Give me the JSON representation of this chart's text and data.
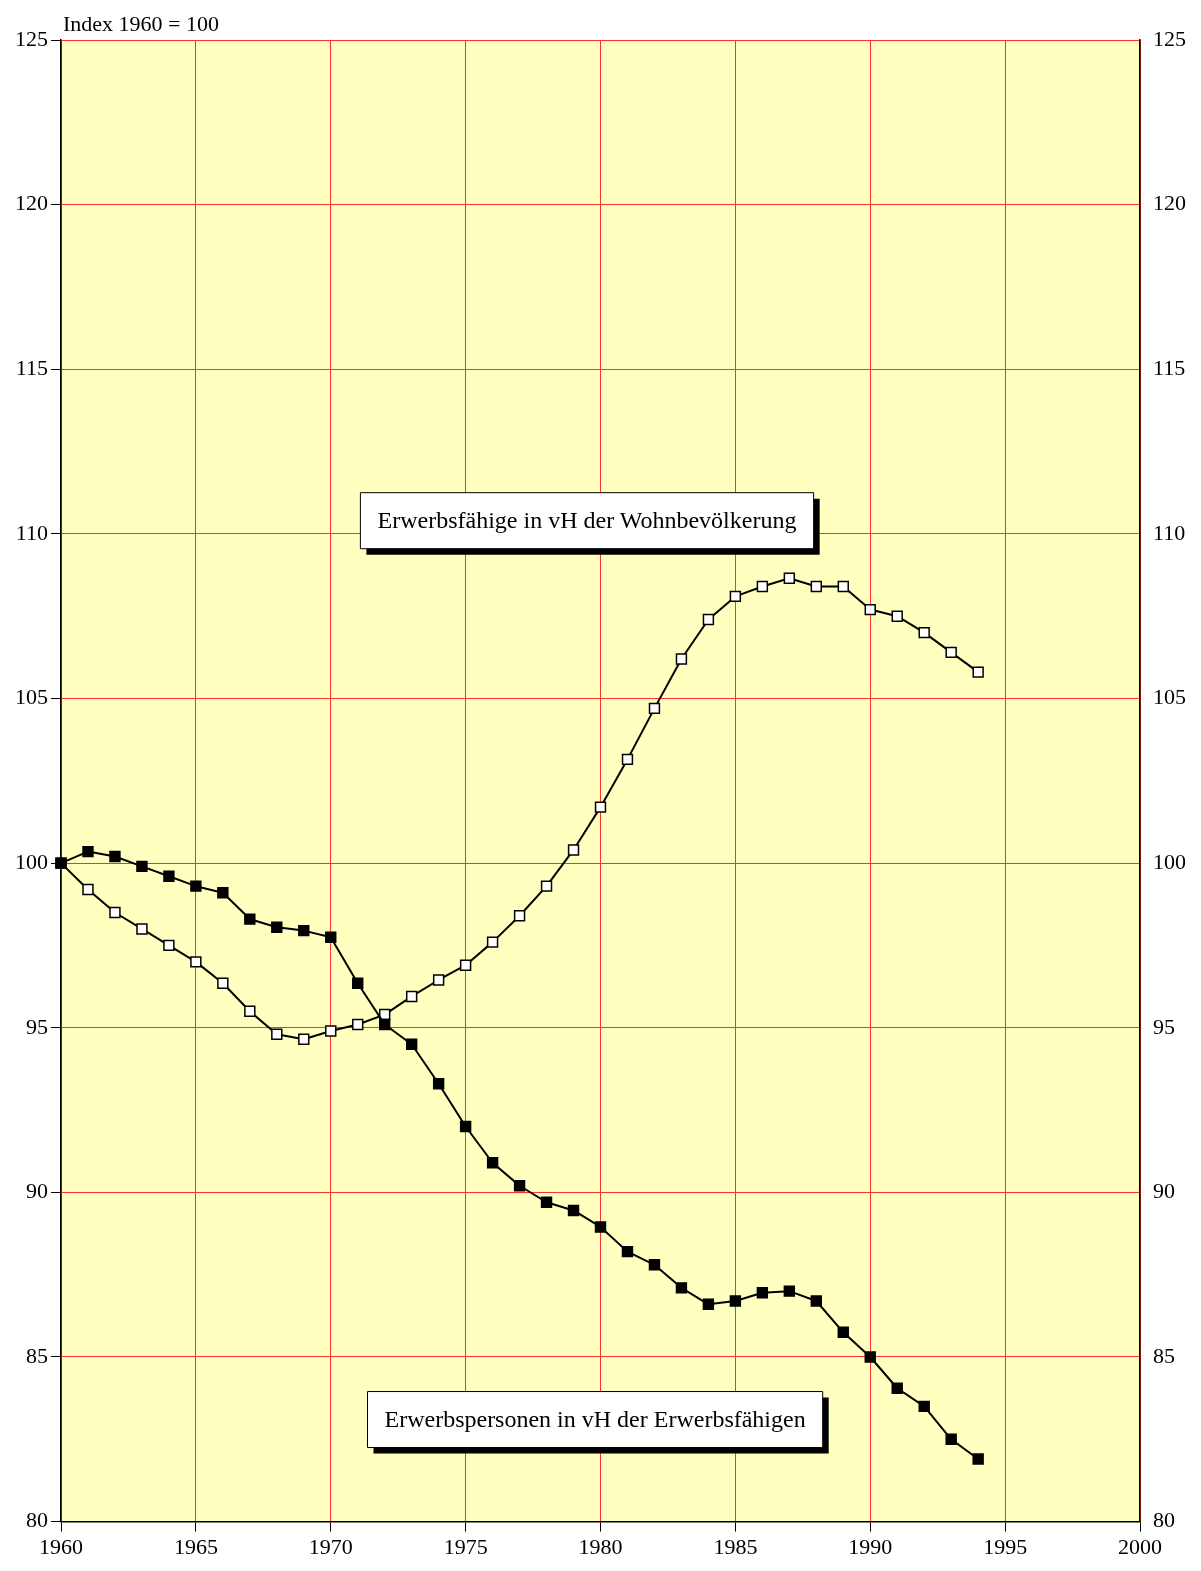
{
  "chart_data": {
    "type": "line",
    "ylabel": "Index 1960 = 100",
    "x": [
      1960,
      1961,
      1962,
      1963,
      1964,
      1965,
      1966,
      1967,
      1968,
      1969,
      1970,
      1971,
      1972,
      1973,
      1974,
      1975,
      1976,
      1977,
      1978,
      1979,
      1980,
      1981,
      1982,
      1983,
      1984,
      1985,
      1986,
      1987,
      1988,
      1989,
      1990,
      1991,
      1992,
      1993,
      1994
    ],
    "series": [
      {
        "name": "Erwerbsfähige in vH der Wohnbevölkerung",
        "color": "#ffffff",
        "values": [
          100,
          99.2,
          98.5,
          98.0,
          97.5,
          97.0,
          96.35,
          95.5,
          94.8,
          94.65,
          94.9,
          95.1,
          95.4,
          95.95,
          96.45,
          96.9,
          97.6,
          98.4,
          99.3,
          100.4,
          101.7,
          103.15,
          104.7,
          106.2,
          107.4,
          108.1,
          108.4,
          108.65,
          108.4,
          108.4,
          107.7,
          107.5,
          107.0,
          106.4,
          105.8
        ]
      },
      {
        "name": "Erwerbspersonen in vH der Erwerbsfähigen",
        "color": "#000000",
        "values": [
          100,
          100.35,
          100.2,
          99.9,
          99.6,
          99.3,
          99.1,
          98.3,
          98.05,
          97.95,
          97.75,
          96.35,
          95.1,
          94.5,
          93.3,
          92.0,
          90.9,
          90.2,
          89.7,
          89.45,
          88.95,
          88.2,
          87.8,
          87.1,
          86.6,
          86.7,
          86.95,
          87.0,
          86.7,
          85.75,
          85.0,
          84.05,
          83.5,
          82.5,
          81.9
        ]
      }
    ],
    "xlim": [
      1960,
      2000
    ],
    "xticks": [
      1960,
      1965,
      1970,
      1975,
      1980,
      1985,
      1990,
      1995,
      2000
    ],
    "ylim": [
      80,
      125
    ],
    "yticks": [
      80,
      85,
      90,
      95,
      100,
      105,
      110,
      115,
      120,
      125
    ],
    "y2lim": [
      80,
      125
    ],
    "y2ticks": [
      80,
      85,
      90,
      95,
      100,
      105,
      110,
      115,
      120,
      125
    ],
    "grid": true,
    "marker": "square",
    "line_style": "solid",
    "legend": false
  }
}
